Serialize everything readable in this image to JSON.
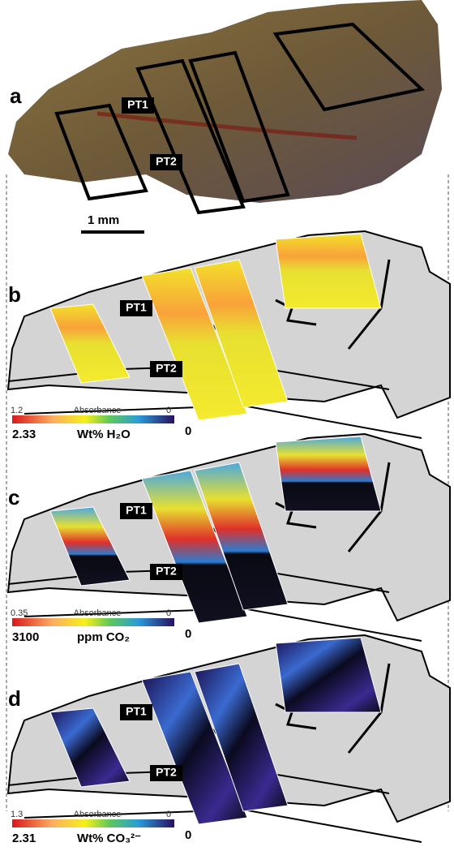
{
  "panels": [
    {
      "label": "a",
      "sites": [
        "PT1",
        "PT2"
      ],
      "scale_bar": "1 mm"
    },
    {
      "label": "b",
      "sites": [
        "PT1",
        "PT2"
      ],
      "colorbar": {
        "absorbance_max": 1.2,
        "title": "Absorbance",
        "absorbance_min": 0,
        "value_max": 2.33,
        "unit": "Wt% H₂O",
        "value_min": 0
      }
    },
    {
      "label": "c",
      "sites": [
        "PT1",
        "PT2"
      ],
      "colorbar": {
        "absorbance_max": 0.35,
        "title": "Absorbance",
        "absorbance_min": 0,
        "value_max": 3100,
        "unit": "ppm CO₂",
        "value_min": 0
      }
    },
    {
      "label": "d",
      "sites": [
        "PT1",
        "PT2"
      ],
      "colorbar": {
        "absorbance_max": 1.3,
        "title": "Absorbance",
        "absorbance_min": 0,
        "value_max": 2.31,
        "unit": "Wt% CO₃²⁻",
        "value_min": 0
      }
    }
  ]
}
